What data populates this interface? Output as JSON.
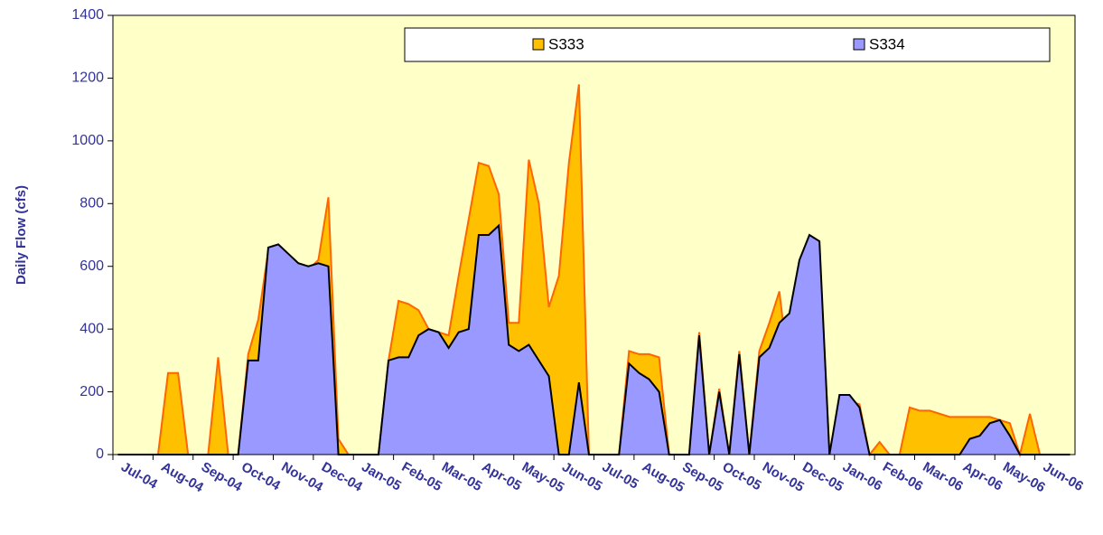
{
  "chart_data": {
    "type": "area",
    "y_label": "Daily Flow (cfs)",
    "categories": [
      "Jul-04",
      "Aug-04",
      "Sep-04",
      "Oct-04",
      "Nov-04",
      "Dec-04",
      "Jan-05",
      "Feb-05",
      "Mar-05",
      "Apr-05",
      "May-05",
      "Jun-05",
      "Jul-05",
      "Aug-05",
      "Sep-05",
      "Oct-05",
      "Nov-05",
      "Dec-05",
      "Jan-06",
      "Feb-06",
      "Mar-06",
      "Apr-06",
      "May-06",
      "Jun-06"
    ],
    "series": [
      {
        "name": "S333",
        "color": "#ffc000",
        "line_color": "#ff6600",
        "values": [
          [
            0,
            0,
            0,
            0
          ],
          [
            0,
            260,
            260,
            0
          ],
          [
            0,
            0,
            310,
            0
          ],
          [
            0,
            320,
            430,
            650
          ],
          [
            640,
            620,
            600,
            590
          ],
          [
            620,
            820,
            50,
            0
          ],
          [
            0,
            0,
            0,
            300
          ],
          [
            490,
            480,
            460,
            400
          ],
          [
            390,
            380,
            570,
            750
          ],
          [
            930,
            920,
            830,
            420
          ],
          [
            420,
            940,
            800,
            470
          ],
          [
            570,
            930,
            1180,
            0
          ],
          [
            0,
            0,
            0,
            330
          ],
          [
            320,
            320,
            310,
            0
          ],
          [
            0,
            0,
            390,
            0
          ],
          [
            210,
            0,
            330,
            0
          ],
          [
            330,
            420,
            520,
            250
          ],
          [
            600,
            660,
            660,
            0
          ],
          [
            180,
            170,
            160,
            0
          ],
          [
            40,
            0,
            0,
            150
          ],
          [
            140,
            140,
            130,
            120
          ],
          [
            120,
            120,
            120,
            120
          ],
          [
            110,
            100,
            0,
            130
          ],
          [
            0,
            0,
            0,
            0
          ]
        ]
      },
      {
        "name": "S334",
        "color": "#9999ff",
        "line_color": "#000000",
        "values": [
          [
            0,
            0,
            0,
            0
          ],
          [
            0,
            0,
            0,
            0
          ],
          [
            0,
            0,
            0,
            0
          ],
          [
            0,
            300,
            300,
            660
          ],
          [
            670,
            640,
            610,
            600
          ],
          [
            610,
            600,
            0,
            0
          ],
          [
            0,
            0,
            0,
            300
          ],
          [
            310,
            310,
            380,
            400
          ],
          [
            390,
            340,
            390,
            400
          ],
          [
            700,
            700,
            730,
            350
          ],
          [
            330,
            350,
            300,
            250
          ],
          [
            0,
            0,
            230,
            0
          ],
          [
            0,
            0,
            0,
            290
          ],
          [
            260,
            240,
            200,
            0
          ],
          [
            0,
            0,
            380,
            0
          ],
          [
            200,
            0,
            320,
            0
          ],
          [
            310,
            340,
            420,
            450
          ],
          [
            620,
            700,
            680,
            0
          ],
          [
            190,
            190,
            150,
            0
          ],
          [
            0,
            0,
            0,
            0
          ],
          [
            0,
            0,
            0,
            0
          ],
          [
            0,
            50,
            60,
            100
          ],
          [
            110,
            60,
            0,
            0
          ],
          [
            0,
            0,
            0,
            0
          ]
        ]
      }
    ],
    "ylim": [
      0,
      1400
    ],
    "yticks": [
      0,
      200,
      400,
      600,
      800,
      1000,
      1200,
      1400
    ],
    "background": "#ffffc8",
    "legend": "top-right"
  }
}
